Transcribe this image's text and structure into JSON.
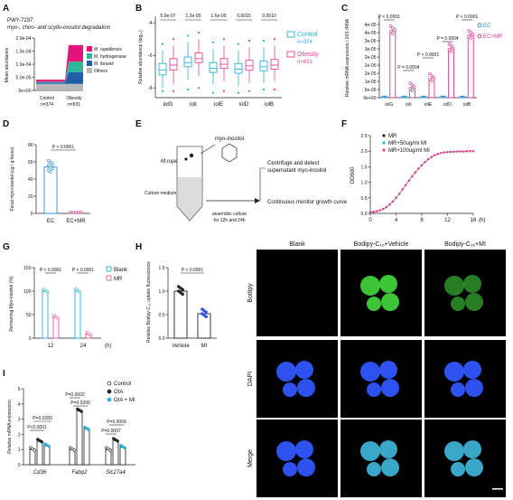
{
  "panel_labels": [
    "A",
    "B",
    "C",
    "D",
    "E",
    "F",
    "G",
    "H",
    "I"
  ],
  "colors": {
    "rupellensis": "#e8137a",
    "hydrogenase": "#2eb79a",
    "forsetii": "#1e5fa8",
    "others": "#b8b8b8",
    "control": "#2ab0d6",
    "obesity": "#e8468a",
    "ec": "#2a8fd6",
    "ecmr": "#d53a88",
    "blank": "#2ab0d6",
    "mr": "#e05aa0",
    "bodipy": "#3fd13a",
    "dapi": "#2e52f0"
  },
  "chart_data": [
    {
      "panel": "A",
      "type": "area",
      "title": "PWY-7237:",
      "subtitle": "myo-, chiro- and scyllo-inositol degradation",
      "ylabel": "Mean abundance",
      "yticks": [
        "0e+00",
        "5.0e-05",
        "1.0e-04",
        "1.5e-04",
        "2.0e-04"
      ],
      "ylim": [
        0,
        0.0002
      ],
      "categories": [
        "Control",
        "Obesity"
      ],
      "category_counts": [
        "n=374",
        "n=631"
      ],
      "series": [
        {
          "name": "Others",
          "values": [
            2.5e-05,
            2.5e-05
          ]
        },
        {
          "name": "M. forsetii",
          "values": [
            5e-06,
            4.5e-05
          ]
        },
        {
          "name": "M. hydrogenase",
          "values": [
            3e-06,
            4e-05
          ]
        },
        {
          "name": "M. rupellensis",
          "values": [
            8e-06,
            6.3e-05
          ]
        }
      ],
      "legend": [
        "M. rupellensis",
        "M. hydrogenase",
        "M. forsetii",
        "Others"
      ]
    },
    {
      "panel": "B",
      "type": "box",
      "ylabel": "Relative abundance (log₁₀)",
      "yticks": [
        "-8",
        "-6",
        "-4"
      ],
      "ylim": [
        -8.6,
        -3.6
      ],
      "categories": [
        "iolG",
        "iolI",
        "iolE",
        "iolD",
        "iolB"
      ],
      "pvalues": [
        "5.9e-07",
        "1.3e-05",
        "1.6e-05",
        "0.0015",
        "0.0510"
      ],
      "series": [
        {
          "name": "Control",
          "count": "n=374",
          "boxes": [
            [
              -8.0,
              -7.2,
              -6.9,
              -6.5,
              -5.7
            ],
            [
              -7.5,
              -6.7,
              -6.45,
              -6.1,
              -5.2
            ],
            [
              -7.8,
              -7.05,
              -6.8,
              -6.45,
              -5.6
            ],
            [
              -7.9,
              -7.1,
              -6.85,
              -6.5,
              -5.7
            ],
            [
              -7.7,
              -6.95,
              -6.7,
              -6.35,
              -5.5
            ]
          ],
          "outliers_top": [
            -5.3,
            -4.8,
            -5.2,
            -5.3,
            -5.1
          ],
          "outliers_bottom": [
            -8.2,
            -8.1,
            -8.3,
            -8.3,
            -8.1
          ]
        },
        {
          "name": "Obesity",
          "count": "n=631",
          "boxes": [
            [
              -7.8,
              -6.9,
              -6.6,
              -6.2,
              -5.4
            ],
            [
              -7.3,
              -6.45,
              -6.2,
              -5.85,
              -5.0
            ],
            [
              -7.6,
              -6.8,
              -6.55,
              -6.2,
              -5.4
            ],
            [
              -7.7,
              -6.9,
              -6.65,
              -6.3,
              -5.5
            ],
            [
              -7.6,
              -6.85,
              -6.6,
              -6.25,
              -5.4
            ]
          ],
          "outliers_top": [
            -5.0,
            -4.6,
            -5.0,
            -5.1,
            -5.0
          ],
          "outliers_bottom": [
            -8.2,
            -8.0,
            -8.2,
            -8.2,
            -8.1
          ]
        }
      ]
    },
    {
      "panel": "C",
      "type": "bar",
      "ylabel": "Relative mRNA expression / 16S rRNA",
      "yticks": [
        "0e+00",
        "5e-06",
        "1e-05",
        "2e-05",
        "2e-05",
        "2e-05",
        "3e-05",
        "3e-05",
        "4e-05",
        "4e-05"
      ],
      "ylim": [
        0,
        4.5e-05
      ],
      "categories": [
        "iolG",
        "iolI",
        "iolE",
        "iolD",
        "iolB"
      ],
      "series": [
        {
          "name": "EC",
          "values": [
            2e-07,
            2e-07,
            2e-07,
            3e-07,
            2e-07
          ]
        },
        {
          "name": "EC+MR",
          "values": [
            3.7e-05,
            5.5e-06,
            1.08e-05,
            2.7e-05,
            3.45e-05
          ]
        }
      ],
      "pvalues": [
        "P < 0.0001",
        "P = 0.0004",
        "P < 0.0001",
        "P = 0.0004",
        "P < 0.0001"
      ]
    },
    {
      "panel": "D",
      "type": "bar",
      "ylabel": "Fecal myo-inositol (ug / g feces)",
      "yticks": [
        "0",
        "20",
        "40",
        "60",
        "80"
      ],
      "ylim": [
        0,
        80
      ],
      "categories": [
        "EC",
        "EC+MR"
      ],
      "values": [
        54,
        0.5
      ],
      "pvalue": "P < 0.0001"
    },
    {
      "panel": "F",
      "type": "line",
      "ylabel": "OD600",
      "xlabel": "(h)",
      "xticks": [
        "0",
        "4",
        "8",
        "12",
        "16"
      ],
      "yticks": [
        "0.0",
        "0.5",
        "1.0",
        "1.5",
        "2.0",
        "2.5"
      ],
      "xlim": [
        0,
        16
      ],
      "ylim": [
        0,
        2.5
      ],
      "series": [
        {
          "name": "MR",
          "x": [
            0,
            0.5,
            1,
            1.5,
            2,
            2.5,
            3,
            3.5,
            4,
            4.5,
            5,
            5.5,
            6,
            6.5,
            7,
            7.5,
            8,
            8.5,
            9,
            9.5,
            10,
            10.5,
            11,
            11.5,
            12,
            12.5,
            13,
            13.5,
            14,
            14.5,
            15,
            15.5,
            16
          ],
          "y": [
            0.04,
            0.05,
            0.07,
            0.1,
            0.14,
            0.2,
            0.28,
            0.38,
            0.5,
            0.63,
            0.77,
            0.91,
            1.05,
            1.19,
            1.32,
            1.44,
            1.55,
            1.65,
            1.74,
            1.81,
            1.87,
            1.91,
            1.94,
            1.96,
            1.97,
            1.98,
            1.98,
            1.99,
            1.99,
            1.99,
            2.0,
            2.0,
            2.0
          ]
        },
        {
          "name": "MR+50ug/ml MI",
          "x": [
            0,
            0.5,
            1,
            1.5,
            2,
            2.5,
            3,
            3.5,
            4,
            4.5,
            5,
            5.5,
            6,
            6.5,
            7,
            7.5,
            8,
            8.5,
            9,
            9.5,
            10,
            10.5,
            11,
            11.5,
            12,
            12.5,
            13,
            13.5,
            14,
            14.5,
            15,
            15.5,
            16
          ],
          "y": [
            0.04,
            0.05,
            0.07,
            0.1,
            0.14,
            0.2,
            0.28,
            0.38,
            0.5,
            0.63,
            0.77,
            0.91,
            1.05,
            1.19,
            1.32,
            1.44,
            1.55,
            1.65,
            1.74,
            1.81,
            1.87,
            1.91,
            1.94,
            1.96,
            1.97,
            1.98,
            1.98,
            1.99,
            1.99,
            1.99,
            2.0,
            2.0,
            2.0
          ]
        },
        {
          "name": "MR+100ug/ml MI",
          "x": [
            0,
            0.5,
            1,
            1.5,
            2,
            2.5,
            3,
            3.5,
            4,
            4.5,
            5,
            5.5,
            6,
            6.5,
            7,
            7.5,
            8,
            8.5,
            9,
            9.5,
            10,
            10.5,
            11,
            11.5,
            12,
            12.5,
            13,
            13.5,
            14,
            14.5,
            15,
            15.5,
            16
          ],
          "y": [
            0.04,
            0.05,
            0.07,
            0.1,
            0.14,
            0.2,
            0.28,
            0.38,
            0.5,
            0.63,
            0.77,
            0.91,
            1.05,
            1.19,
            1.32,
            1.44,
            1.55,
            1.65,
            1.74,
            1.81,
            1.87,
            1.91,
            1.94,
            1.96,
            1.97,
            1.98,
            1.98,
            1.99,
            1.99,
            1.99,
            2.0,
            2.0,
            2.0
          ]
        }
      ]
    },
    {
      "panel": "G",
      "type": "bar",
      "ylabel": "Remaining Myo-inositol (%)",
      "xlabel": "(h)",
      "yticks": [
        "0",
        "50",
        "100",
        "150"
      ],
      "ylim": [
        0,
        150
      ],
      "categories": [
        "12",
        "24"
      ],
      "series": [
        {
          "name": "Blank",
          "values": [
            100,
            100
          ]
        },
        {
          "name": "MR",
          "values": [
            44,
            8
          ]
        }
      ],
      "pvalues": [
        "P < 0.0001",
        "P < 0.0001"
      ]
    },
    {
      "panel": "H",
      "type": "bar",
      "ylabel": "Relative Bodipy-C₁₆ uptake fluorescence",
      "yticks": [
        "0.0",
        "0.5",
        "1.0",
        "1.5"
      ],
      "ylim": [
        0,
        1.5
      ],
      "categories": [
        "Vehicle",
        "MI"
      ],
      "values": [
        1.0,
        0.52
      ],
      "pvalue": "P < 0.0001"
    },
    {
      "panel": "I",
      "type": "bar",
      "ylabel": "Relative mRNA expression",
      "yticks": [
        "0",
        "1",
        "2",
        "3",
        "4",
        "5"
      ],
      "ylim": [
        0,
        5
      ],
      "categories": [
        "Cd36",
        "Fabp2",
        "Slc27a4"
      ],
      "series": [
        {
          "name": "Control",
          "values": [
            1.0,
            1.0,
            1.0
          ]
        },
        {
          "name": "OIA",
          "values": [
            1.55,
            3.55,
            1.6
          ]
        },
        {
          "name": "OIA + MI",
          "values": [
            1.25,
            2.35,
            1.15
          ]
        }
      ],
      "pvalues": [
        "P<0.0001",
        "P=0.0283",
        "P=0.0002",
        "P=0.0200",
        "P=0.0007",
        "P=0.0009"
      ]
    }
  ],
  "diagram_e": {
    "organism": "M.rupellensis",
    "compound": "myo-inositol",
    "medium": "Culture medium",
    "culture": "anaerobic culture for 12h and 24h",
    "step1": "Centrifuge and detect supernatant myo-inositol",
    "step2": "Continuous monitor growth curve"
  },
  "micro": {
    "columns": [
      "Blank",
      "Bodipy-C₁₆+Vehicle",
      "Bodipy-C₁₆+MI"
    ],
    "rows": [
      "Bodipy",
      "DAPI",
      "Merge"
    ]
  }
}
